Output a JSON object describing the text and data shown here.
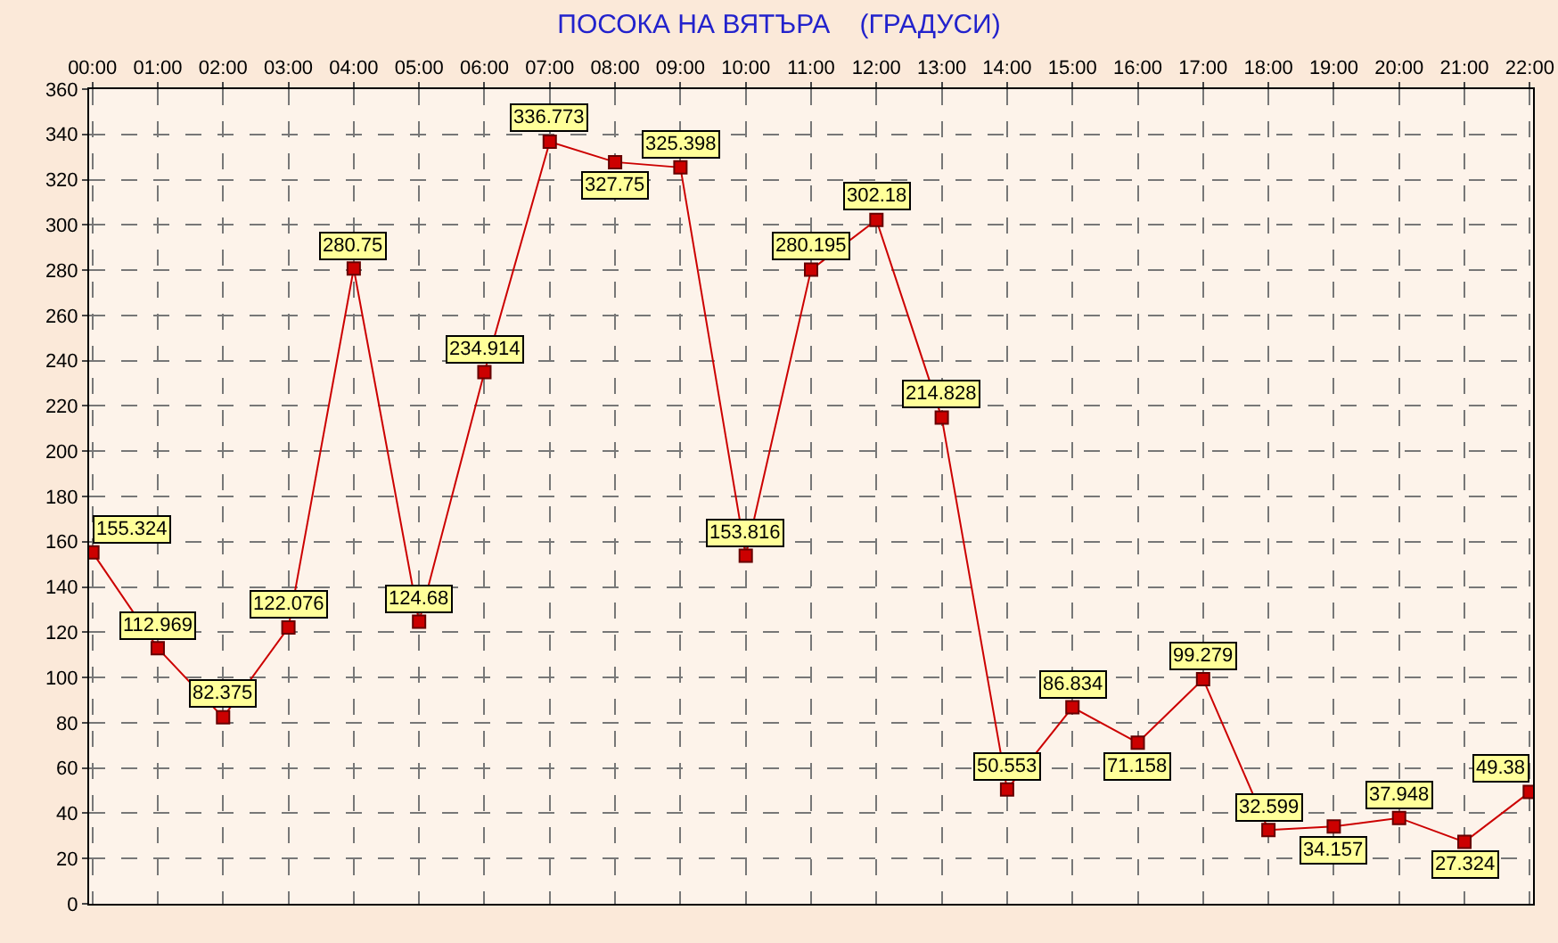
{
  "chart_data": {
    "type": "line",
    "title": "ПОСОКА НА ВЯТЪРА    (ГРАДУСИ)",
    "categories": [
      "00:00",
      "01:00",
      "02:00",
      "03:00",
      "04:00",
      "05:00",
      "06:00",
      "07:00",
      "08:00",
      "09:00",
      "10:00",
      "11:00",
      "12:00",
      "13:00",
      "14:00",
      "15:00",
      "16:00",
      "17:00",
      "18:00",
      "19:00",
      "20:00",
      "21:00",
      "22:00"
    ],
    "series": [
      {
        "color": "#cc0000",
        "values": [
          155.324,
          112.969,
          82.375,
          122.076,
          280.75,
          124.68,
          234.914,
          336.773,
          327.75,
          325.398,
          153.816,
          280.195,
          302.18,
          214.828,
          50.553,
          86.834,
          71.158,
          99.279,
          32.599,
          34.157,
          37.948,
          27.324,
          49.38
        ],
        "value_labels": [
          "155.324",
          "112.969",
          "82.375",
          "122.076",
          "280.75",
          "124.68",
          "234.914",
          "336.773",
          "327.75",
          "325.398",
          "153.816",
          "280.195",
          "302.18",
          "214.828",
          "50.553",
          "86.834",
          "71.158",
          "99.279",
          "32.599",
          "34.157",
          "37.948",
          "27.324",
          "49.38"
        ]
      }
    ],
    "ylim": [
      0,
      360
    ],
    "yticks": [
      0,
      20,
      40,
      60,
      80,
      100,
      120,
      140,
      160,
      180,
      200,
      220,
      240,
      260,
      280,
      300,
      320,
      340,
      360
    ],
    "grid": true,
    "marker": "square",
    "line_style": "solid"
  }
}
